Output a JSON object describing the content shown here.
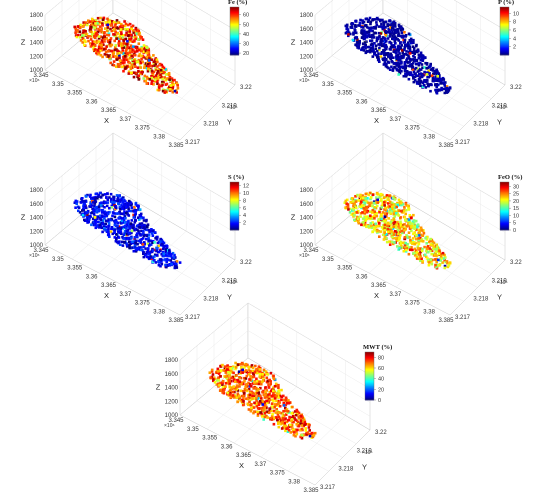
{
  "chart_data": [
    {
      "type": "scatter",
      "title": "",
      "colorbar_label": "Fe (%)",
      "colorbar_ticks": [
        "20",
        "30",
        "40",
        "50",
        "60"
      ],
      "clim": [
        18,
        68
      ],
      "dominant_value": 58,
      "value_spread": 14,
      "xlabel": "X",
      "ylabel": "Y",
      "zlabel": "Z",
      "xticks": [
        "3.345",
        "3.35",
        "3.355",
        "3.36",
        "3.365",
        "3.37",
        "3.375",
        "3.38",
        "3.385"
      ],
      "yticks": [
        "3.217",
        "3.218",
        "3.219",
        "3.22"
      ],
      "zticks": [
        "1000",
        "1200",
        "1400",
        "1600",
        "1800"
      ],
      "x_exponent": "×10⁶",
      "y_exponent": "×10⁶",
      "colormap": "jet",
      "grid": true
    },
    {
      "type": "scatter",
      "title": "",
      "colorbar_label": "P (%)",
      "colorbar_ticks": [
        "2",
        "4",
        "6",
        "8",
        "10"
      ],
      "clim": [
        0,
        11.5
      ],
      "dominant_value": 0.4,
      "value_spread": 0.4,
      "xlabel": "X",
      "ylabel": "Y",
      "zlabel": "Z",
      "xticks": [
        "3.345",
        "3.35",
        "3.355",
        "3.36",
        "3.365",
        "3.37",
        "3.375",
        "3.38",
        "3.385"
      ],
      "yticks": [
        "3.217",
        "3.218",
        "3.219",
        "3.22"
      ],
      "zticks": [
        "1000",
        "1200",
        "1400",
        "1600",
        "1800"
      ],
      "x_exponent": "×10⁶",
      "y_exponent": "×10⁶",
      "colormap": "jet",
      "grid": true
    },
    {
      "type": "scatter",
      "title": "",
      "colorbar_label": "S (%)",
      "colorbar_ticks": [
        "2",
        "4",
        "6",
        "8",
        "10",
        "12"
      ],
      "clim": [
        0,
        13
      ],
      "dominant_value": 1.5,
      "value_spread": 1.5,
      "xlabel": "X",
      "ylabel": "Y",
      "zlabel": "Z",
      "xticks": [
        "3.345",
        "3.35",
        "3.355",
        "3.36",
        "3.365",
        "3.37",
        "3.375",
        "3.38",
        "3.385"
      ],
      "yticks": [
        "3.217",
        "3.218",
        "3.219",
        "3.22"
      ],
      "zticks": [
        "1000",
        "1200",
        "1400",
        "1600",
        "1800"
      ],
      "x_exponent": "×10⁶",
      "y_exponent": "×10⁶",
      "colormap": "jet",
      "grid": true
    },
    {
      "type": "scatter",
      "title": "",
      "colorbar_label": "FeO (%)",
      "colorbar_ticks": [
        "0",
        "5",
        "10",
        "15",
        "20",
        "25",
        "30"
      ],
      "clim": [
        0,
        33
      ],
      "dominant_value": 22,
      "value_spread": 8,
      "xlabel": "X",
      "ylabel": "Y",
      "zlabel": "Z",
      "xticks": [
        "3.345",
        "3.35",
        "3.355",
        "3.36",
        "3.365",
        "3.37",
        "3.375",
        "3.38",
        "3.385"
      ],
      "yticks": [
        "3.217",
        "3.218",
        "3.219",
        "3.22"
      ],
      "zticks": [
        "1000",
        "1200",
        "1400",
        "1600",
        "1800"
      ],
      "x_exponent": "×10⁶",
      "y_exponent": "×10⁶",
      "colormap": "jet",
      "grid": true
    },
    {
      "type": "scatter",
      "title": "",
      "colorbar_label": "MWT (%)",
      "colorbar_ticks": [
        "0",
        "20",
        "40",
        "60",
        "80"
      ],
      "clim": [
        0,
        90
      ],
      "dominant_value": 70,
      "value_spread": 20,
      "xlabel": "X",
      "ylabel": "Y",
      "zlabel": "Z",
      "xticks": [
        "3.345",
        "3.35",
        "3.355",
        "3.36",
        "3.365",
        "3.37",
        "3.375",
        "3.38",
        "3.385"
      ],
      "yticks": [
        "3.217",
        "3.218",
        "3.219",
        "3.22"
      ],
      "zticks": [
        "1000",
        "1200",
        "1400",
        "1600",
        "1800"
      ],
      "x_exponent": "×10⁶",
      "y_exponent": "×10⁶",
      "colormap": "jet",
      "grid": true
    }
  ]
}
